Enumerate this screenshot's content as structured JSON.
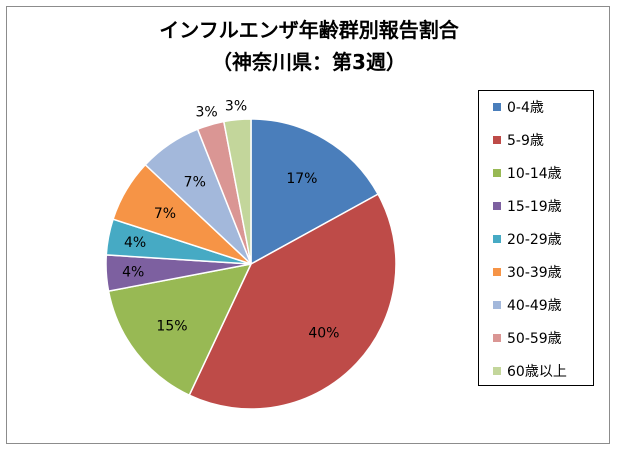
{
  "chart_data": {
    "type": "pie",
    "title": "インフルエンザ年齢群別報告割合",
    "subtitle": "（神奈川県：第3週）",
    "categories": [
      "0-4歳",
      "5-9歳",
      "10-14歳",
      "15-19歳",
      "20-29歳",
      "30-39歳",
      "40-49歳",
      "50-59歳",
      "60歳以上"
    ],
    "values": [
      17,
      40,
      15,
      4,
      4,
      7,
      7,
      3,
      3
    ],
    "data_labels": [
      "17%",
      "40%",
      "15%",
      "4%",
      "4%",
      "7%",
      "7%",
      "3%",
      "3%"
    ],
    "colors": [
      "#4a7ebb",
      "#be4b48",
      "#98b954",
      "#7d60a0",
      "#46aac4",
      "#f69446",
      "#a3b8db",
      "#da9694",
      "#c3d69b"
    ],
    "legend_position": "right"
  }
}
